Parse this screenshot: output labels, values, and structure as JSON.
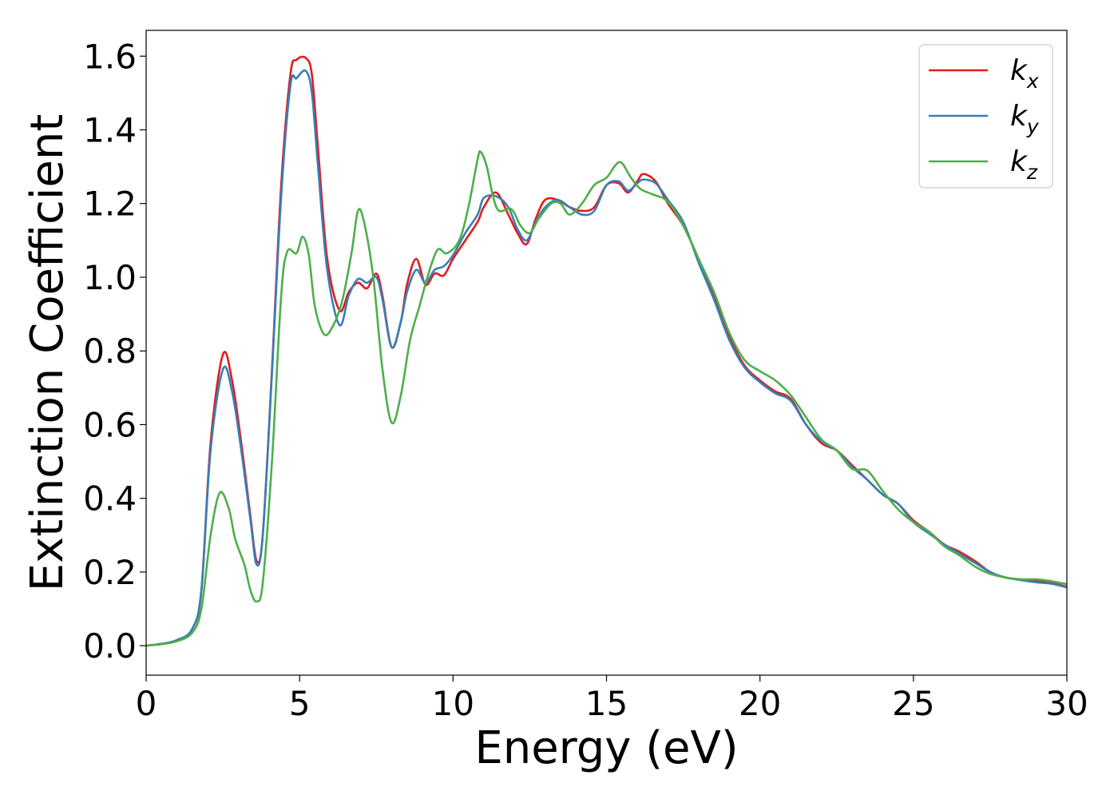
{
  "chart_data": {
    "type": "line",
    "title": "",
    "xlabel": "Energy (eV)",
    "ylabel": "Extinction Coefficient",
    "xlim": [
      0,
      30
    ],
    "ylim": [
      -0.08,
      1.67
    ],
    "xticks": [
      "0",
      "5",
      "10",
      "15",
      "20",
      "25",
      "30"
    ],
    "yticks": [
      "0.0",
      "0.2",
      "0.4",
      "0.6",
      "0.8",
      "1.0",
      "1.2",
      "1.4",
      "1.6"
    ],
    "grid": false,
    "legend_position": "top-right",
    "series": [
      {
        "name": "k_x",
        "legend_base": "k",
        "legend_sub": "x",
        "color": "#e41a1c",
        "points": [
          [
            0,
            0
          ],
          [
            0.5,
            0.005
          ],
          [
            1.0,
            0.015
          ],
          [
            1.5,
            0.045
          ],
          [
            1.8,
            0.15
          ],
          [
            2.1,
            0.55
          ],
          [
            2.5,
            0.79
          ],
          [
            2.8,
            0.72
          ],
          [
            3.1,
            0.55
          ],
          [
            3.4,
            0.35
          ],
          [
            3.6,
            0.23
          ],
          [
            3.8,
            0.3
          ],
          [
            4.1,
            0.75
          ],
          [
            4.4,
            1.25
          ],
          [
            4.7,
            1.55
          ],
          [
            4.9,
            1.59
          ],
          [
            5.2,
            1.595
          ],
          [
            5.4,
            1.55
          ],
          [
            5.6,
            1.35
          ],
          [
            5.9,
            1.05
          ],
          [
            6.3,
            0.91
          ],
          [
            6.6,
            0.96
          ],
          [
            6.9,
            0.985
          ],
          [
            7.2,
            0.97
          ],
          [
            7.5,
            1.01
          ],
          [
            7.7,
            0.95
          ],
          [
            8.0,
            0.81
          ],
          [
            8.3,
            0.88
          ],
          [
            8.5,
            0.98
          ],
          [
            8.8,
            1.05
          ],
          [
            9.1,
            0.98
          ],
          [
            9.4,
            1.01
          ],
          [
            9.7,
            1.005
          ],
          [
            10.0,
            1.05
          ],
          [
            10.4,
            1.1
          ],
          [
            10.8,
            1.15
          ],
          [
            11.0,
            1.19
          ],
          [
            11.4,
            1.23
          ],
          [
            11.8,
            1.17
          ],
          [
            12.1,
            1.12
          ],
          [
            12.4,
            1.09
          ],
          [
            12.7,
            1.16
          ],
          [
            13.0,
            1.21
          ],
          [
            13.4,
            1.21
          ],
          [
            13.8,
            1.19
          ],
          [
            14.2,
            1.18
          ],
          [
            14.6,
            1.19
          ],
          [
            15.0,
            1.25
          ],
          [
            15.4,
            1.255
          ],
          [
            15.7,
            1.23
          ],
          [
            16.0,
            1.26
          ],
          [
            16.2,
            1.28
          ],
          [
            16.6,
            1.26
          ],
          [
            17.0,
            1.2
          ],
          [
            17.5,
            1.14
          ],
          [
            18.0,
            1.05
          ],
          [
            18.5,
            0.95
          ],
          [
            19.0,
            0.84
          ],
          [
            19.5,
            0.76
          ],
          [
            20.0,
            0.72
          ],
          [
            20.5,
            0.69
          ],
          [
            21.0,
            0.67
          ],
          [
            21.5,
            0.6
          ],
          [
            22.0,
            0.55
          ],
          [
            22.5,
            0.53
          ],
          [
            23.0,
            0.49
          ],
          [
            23.5,
            0.45
          ],
          [
            24.0,
            0.41
          ],
          [
            24.5,
            0.385
          ],
          [
            25.0,
            0.34
          ],
          [
            25.5,
            0.31
          ],
          [
            26.0,
            0.275
          ],
          [
            26.5,
            0.255
          ],
          [
            27.0,
            0.23
          ],
          [
            27.5,
            0.2
          ],
          [
            28.0,
            0.185
          ],
          [
            28.5,
            0.18
          ],
          [
            29.0,
            0.175
          ],
          [
            29.5,
            0.17
          ],
          [
            30.0,
            0.16
          ]
        ]
      },
      {
        "name": "k_y",
        "legend_base": "k",
        "legend_sub": "y",
        "color": "#377eb8",
        "points": [
          [
            0,
            0
          ],
          [
            0.5,
            0.005
          ],
          [
            1.0,
            0.015
          ],
          [
            1.5,
            0.045
          ],
          [
            1.8,
            0.15
          ],
          [
            2.1,
            0.53
          ],
          [
            2.5,
            0.75
          ],
          [
            2.8,
            0.69
          ],
          [
            3.1,
            0.53
          ],
          [
            3.4,
            0.34
          ],
          [
            3.6,
            0.22
          ],
          [
            3.8,
            0.3
          ],
          [
            4.1,
            0.74
          ],
          [
            4.4,
            1.22
          ],
          [
            4.7,
            1.52
          ],
          [
            4.9,
            1.54
          ],
          [
            5.2,
            1.56
          ],
          [
            5.4,
            1.5
          ],
          [
            5.6,
            1.3
          ],
          [
            5.9,
            1.02
          ],
          [
            6.3,
            0.87
          ],
          [
            6.6,
            0.95
          ],
          [
            6.9,
            0.995
          ],
          [
            7.2,
            0.985
          ],
          [
            7.5,
            1.0
          ],
          [
            7.7,
            0.94
          ],
          [
            8.0,
            0.81
          ],
          [
            8.3,
            0.88
          ],
          [
            8.5,
            0.96
          ],
          [
            8.8,
            1.02
          ],
          [
            9.1,
            0.985
          ],
          [
            9.4,
            1.02
          ],
          [
            9.7,
            1.03
          ],
          [
            10.0,
            1.06
          ],
          [
            10.4,
            1.12
          ],
          [
            10.8,
            1.17
          ],
          [
            11.0,
            1.215
          ],
          [
            11.4,
            1.22
          ],
          [
            11.8,
            1.19
          ],
          [
            12.1,
            1.13
          ],
          [
            12.4,
            1.1
          ],
          [
            12.7,
            1.15
          ],
          [
            13.0,
            1.19
          ],
          [
            13.4,
            1.21
          ],
          [
            13.8,
            1.19
          ],
          [
            14.2,
            1.17
          ],
          [
            14.6,
            1.18
          ],
          [
            15.0,
            1.25
          ],
          [
            15.4,
            1.26
          ],
          [
            15.7,
            1.235
          ],
          [
            16.0,
            1.255
          ],
          [
            16.2,
            1.265
          ],
          [
            16.6,
            1.255
          ],
          [
            17.0,
            1.21
          ],
          [
            17.5,
            1.15
          ],
          [
            18.0,
            1.04
          ],
          [
            18.5,
            0.94
          ],
          [
            19.0,
            0.83
          ],
          [
            19.5,
            0.755
          ],
          [
            20.0,
            0.715
          ],
          [
            20.5,
            0.685
          ],
          [
            21.0,
            0.665
          ],
          [
            21.5,
            0.6
          ],
          [
            22.0,
            0.555
          ],
          [
            22.5,
            0.53
          ],
          [
            23.0,
            0.485
          ],
          [
            23.5,
            0.45
          ],
          [
            24.0,
            0.41
          ],
          [
            24.5,
            0.385
          ],
          [
            25.0,
            0.335
          ],
          [
            25.5,
            0.305
          ],
          [
            26.0,
            0.275
          ],
          [
            26.5,
            0.25
          ],
          [
            27.0,
            0.225
          ],
          [
            27.5,
            0.2
          ],
          [
            28.0,
            0.185
          ],
          [
            28.5,
            0.178
          ],
          [
            29.0,
            0.172
          ],
          [
            29.5,
            0.168
          ],
          [
            30.0,
            0.158
          ]
        ]
      },
      {
        "name": "k_z",
        "legend_base": "k",
        "legend_sub": "z",
        "color": "#4daf4a",
        "points": [
          [
            0,
            0
          ],
          [
            0.5,
            0.004
          ],
          [
            1.0,
            0.012
          ],
          [
            1.5,
            0.035
          ],
          [
            1.8,
            0.1
          ],
          [
            2.1,
            0.3
          ],
          [
            2.4,
            0.415
          ],
          [
            2.7,
            0.37
          ],
          [
            2.9,
            0.29
          ],
          [
            3.2,
            0.22
          ],
          [
            3.4,
            0.15
          ],
          [
            3.6,
            0.12
          ],
          [
            3.8,
            0.17
          ],
          [
            4.1,
            0.5
          ],
          [
            4.4,
            0.95
          ],
          [
            4.6,
            1.07
          ],
          [
            4.9,
            1.065
          ],
          [
            5.1,
            1.11
          ],
          [
            5.3,
            1.06
          ],
          [
            5.5,
            0.92
          ],
          [
            5.8,
            0.845
          ],
          [
            6.1,
            0.87
          ],
          [
            6.4,
            0.94
          ],
          [
            6.7,
            1.07
          ],
          [
            6.9,
            1.18
          ],
          [
            7.1,
            1.15
          ],
          [
            7.4,
            1.0
          ],
          [
            7.7,
            0.75
          ],
          [
            8.0,
            0.605
          ],
          [
            8.3,
            0.68
          ],
          [
            8.6,
            0.83
          ],
          [
            8.9,
            0.92
          ],
          [
            9.2,
            1.01
          ],
          [
            9.5,
            1.075
          ],
          [
            9.8,
            1.065
          ],
          [
            10.2,
            1.1
          ],
          [
            10.5,
            1.19
          ],
          [
            10.8,
            1.32
          ],
          [
            10.9,
            1.34
          ],
          [
            11.1,
            1.3
          ],
          [
            11.3,
            1.22
          ],
          [
            11.5,
            1.18
          ],
          [
            11.9,
            1.185
          ],
          [
            12.2,
            1.14
          ],
          [
            12.5,
            1.12
          ],
          [
            12.8,
            1.16
          ],
          [
            13.2,
            1.2
          ],
          [
            13.5,
            1.2
          ],
          [
            13.8,
            1.17
          ],
          [
            14.2,
            1.2
          ],
          [
            14.6,
            1.25
          ],
          [
            15.0,
            1.27
          ],
          [
            15.3,
            1.305
          ],
          [
            15.5,
            1.31
          ],
          [
            15.8,
            1.27
          ],
          [
            16.1,
            1.24
          ],
          [
            16.5,
            1.225
          ],
          [
            17.0,
            1.205
          ],
          [
            17.5,
            1.14
          ],
          [
            18.0,
            1.05
          ],
          [
            18.5,
            0.96
          ],
          [
            19.0,
            0.85
          ],
          [
            19.5,
            0.775
          ],
          [
            20.0,
            0.745
          ],
          [
            20.5,
            0.72
          ],
          [
            21.0,
            0.68
          ],
          [
            21.5,
            0.62
          ],
          [
            22.0,
            0.56
          ],
          [
            22.5,
            0.53
          ],
          [
            23.0,
            0.48
          ],
          [
            23.5,
            0.475
          ],
          [
            24.0,
            0.42
          ],
          [
            24.5,
            0.37
          ],
          [
            25.0,
            0.335
          ],
          [
            25.5,
            0.31
          ],
          [
            26.0,
            0.27
          ],
          [
            26.5,
            0.245
          ],
          [
            27.0,
            0.215
          ],
          [
            27.5,
            0.195
          ],
          [
            28.0,
            0.185
          ],
          [
            28.5,
            0.18
          ],
          [
            29.0,
            0.18
          ],
          [
            29.5,
            0.175
          ],
          [
            30.0,
            0.167
          ]
        ]
      }
    ]
  }
}
